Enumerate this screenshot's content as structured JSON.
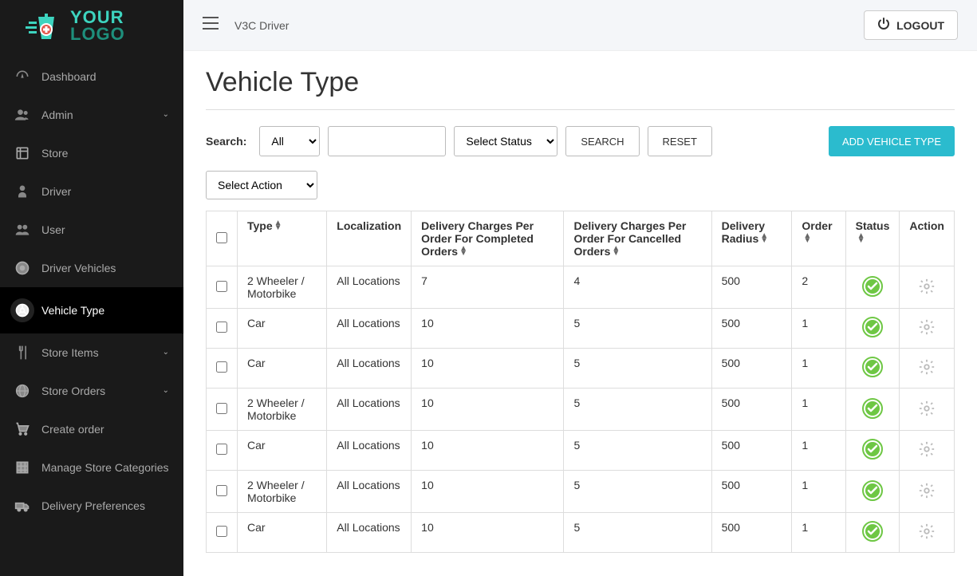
{
  "brand": {
    "line1": "YOUR",
    "line2": "LOGO"
  },
  "topbar": {
    "title": "V3C  Driver",
    "logout": "LOGOUT"
  },
  "sidebar": {
    "items": [
      {
        "label": "Dashboard",
        "icon": "dashboard",
        "expand": false
      },
      {
        "label": "Admin",
        "icon": "admin",
        "expand": true
      },
      {
        "label": "Store",
        "icon": "store",
        "expand": false
      },
      {
        "label": "Driver",
        "icon": "driver",
        "expand": false
      },
      {
        "label": "User",
        "icon": "users",
        "expand": false
      },
      {
        "label": "Driver Vehicles",
        "icon": "target",
        "expand": false
      },
      {
        "label": "Vehicle Type",
        "icon": "wheel",
        "expand": false,
        "active": true
      },
      {
        "label": "Store Items",
        "icon": "fork",
        "expand": true
      },
      {
        "label": "Store Orders",
        "icon": "globe",
        "expand": true
      },
      {
        "label": "Create order",
        "icon": "cart",
        "expand": false
      },
      {
        "label": "Manage Store Categories",
        "icon": "grid",
        "expand": false
      },
      {
        "label": "Delivery Preferences",
        "icon": "delivery",
        "expand": false
      }
    ]
  },
  "page": {
    "title": "Vehicle Type"
  },
  "search": {
    "label": "Search:",
    "all_option": "All",
    "status_option": "Select Status",
    "search_btn": "SEARCH",
    "reset_btn": "RESET",
    "add_btn": "ADD VEHICLE TYPE",
    "action_option": "Select Action"
  },
  "table": {
    "headers": {
      "type": "Type",
      "localization": "Localization",
      "completed": "Delivery Charges Per Order For Completed Orders",
      "cancelled": "Delivery Charges Per Order For Cancelled Orders",
      "radius": "Delivery Radius",
      "order": "Order",
      "status": "Status",
      "action": "Action"
    },
    "rows": [
      {
        "type": "2 Wheeler / Motorbike",
        "loc": "All Locations",
        "completed": "7",
        "cancelled": "4",
        "radius": "500",
        "order": "2"
      },
      {
        "type": "Car",
        "loc": "All Locations",
        "completed": "10",
        "cancelled": "5",
        "radius": "500",
        "order": "1"
      },
      {
        "type": "Car",
        "loc": "All Locations",
        "completed": "10",
        "cancelled": "5",
        "radius": "500",
        "order": "1"
      },
      {
        "type": "2 Wheeler / Motorbike",
        "loc": "All Locations",
        "completed": "10",
        "cancelled": "5",
        "radius": "500",
        "order": "1"
      },
      {
        "type": "Car",
        "loc": "All Locations",
        "completed": "10",
        "cancelled": "5",
        "radius": "500",
        "order": "1"
      },
      {
        "type": "2 Wheeler / Motorbike",
        "loc": "All Locations",
        "completed": "10",
        "cancelled": "5",
        "radius": "500",
        "order": "1"
      },
      {
        "type": "Car",
        "loc": "All Locations",
        "completed": "10",
        "cancelled": "5",
        "radius": "500",
        "order": "1"
      }
    ]
  },
  "colors": {
    "accent_teal": "#3dd4bf",
    "accent_teal_dark": "#1e8f7c",
    "cyan_btn": "#2bbbce",
    "status_green": "#6ec744",
    "sidebar_bg": "#1a1a1a",
    "gear_gray": "#bbbbbb",
    "border": "#dddddd"
  }
}
